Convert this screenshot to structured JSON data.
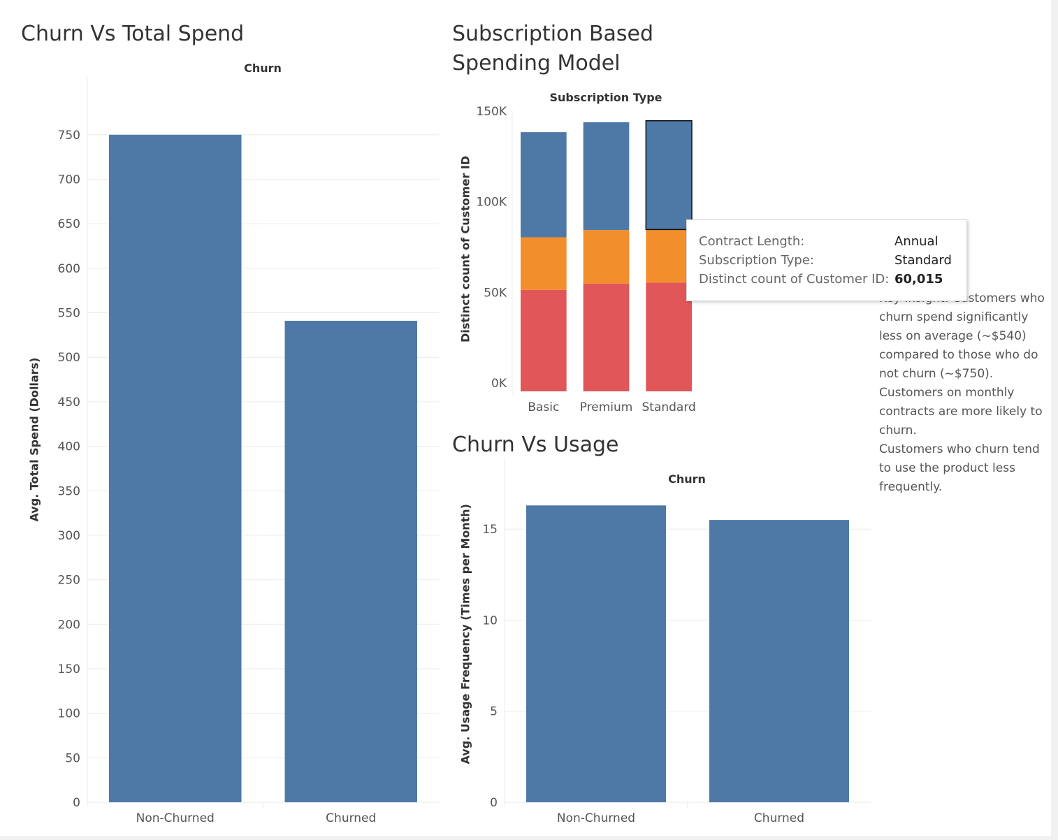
{
  "titles": {
    "spend": "Churn Vs Total Spend",
    "subscription_line1": "Subscription Based",
    "subscription_line2": "Spending Model",
    "usage": "Churn Vs Usage"
  },
  "tooltip": {
    "rows": [
      {
        "label": "Contract Length:",
        "value": "Annual"
      },
      {
        "label": "Subscription Type:",
        "value": "Standard"
      },
      {
        "label": "Distinct count of Customer ID:",
        "value": "60,015"
      }
    ]
  },
  "insights": [
    "Key Insight: Customers who churn spend significantly less on average (~$540) compared to those who do not churn (~$750).",
    "Customers on monthly contracts are more likely to churn.",
    "Customers who churn tend to use the product less frequently."
  ],
  "colors": {
    "blue": "#4e79a7",
    "orange": "#f28e2b",
    "red": "#e15759",
    "grid": "#ebebeb"
  },
  "chart_data": [
    {
      "type": "bar",
      "title": "Churn Vs Total Spend",
      "header": "Churn",
      "categories": [
        "Non-Churned",
        "Churned"
      ],
      "values": [
        750,
        541
      ],
      "ylabel": "Avg. Total Spend (Dollars)",
      "yticks": [
        0,
        50,
        100,
        150,
        200,
        250,
        300,
        350,
        400,
        450,
        500,
        550,
        600,
        650,
        700,
        750
      ],
      "ylim": [
        0,
        775
      ],
      "grid": true
    },
    {
      "type": "bar",
      "stacked": true,
      "title": "Subscription Based Spending Model",
      "header": "Subscription Type",
      "categories": [
        "Basic",
        "Premium",
        "Standard"
      ],
      "ylabel": "Distinct count of Customer ID",
      "yticks": [
        0,
        50000,
        100000,
        150000
      ],
      "ytick_labels": [
        "0K",
        "50K",
        "100K",
        "150K"
      ],
      "ylim": [
        0,
        155000
      ],
      "series": [
        {
          "values": [
            56000,
            59500,
            60000
          ],
          "color": "#e15759"
        },
        {
          "values": [
            29000,
            29500,
            29300
          ],
          "color": "#f28e2b"
        },
        {
          "values": [
            58000,
            59500,
            60015
          ],
          "color": "#4e79a7"
        }
      ],
      "highlighted": {
        "category": "Standard",
        "series_index": 2
      }
    },
    {
      "type": "bar",
      "title": "Churn Vs Usage",
      "header": "Churn",
      "categories": [
        "Non-Churned",
        "Churned"
      ],
      "values": [
        16.3,
        15.5
      ],
      "ylabel": "Avg. Usage Frequency (Times per Month)",
      "yticks": [
        0,
        5,
        10,
        15
      ],
      "ylim": [
        0,
        17
      ],
      "grid": true
    }
  ]
}
